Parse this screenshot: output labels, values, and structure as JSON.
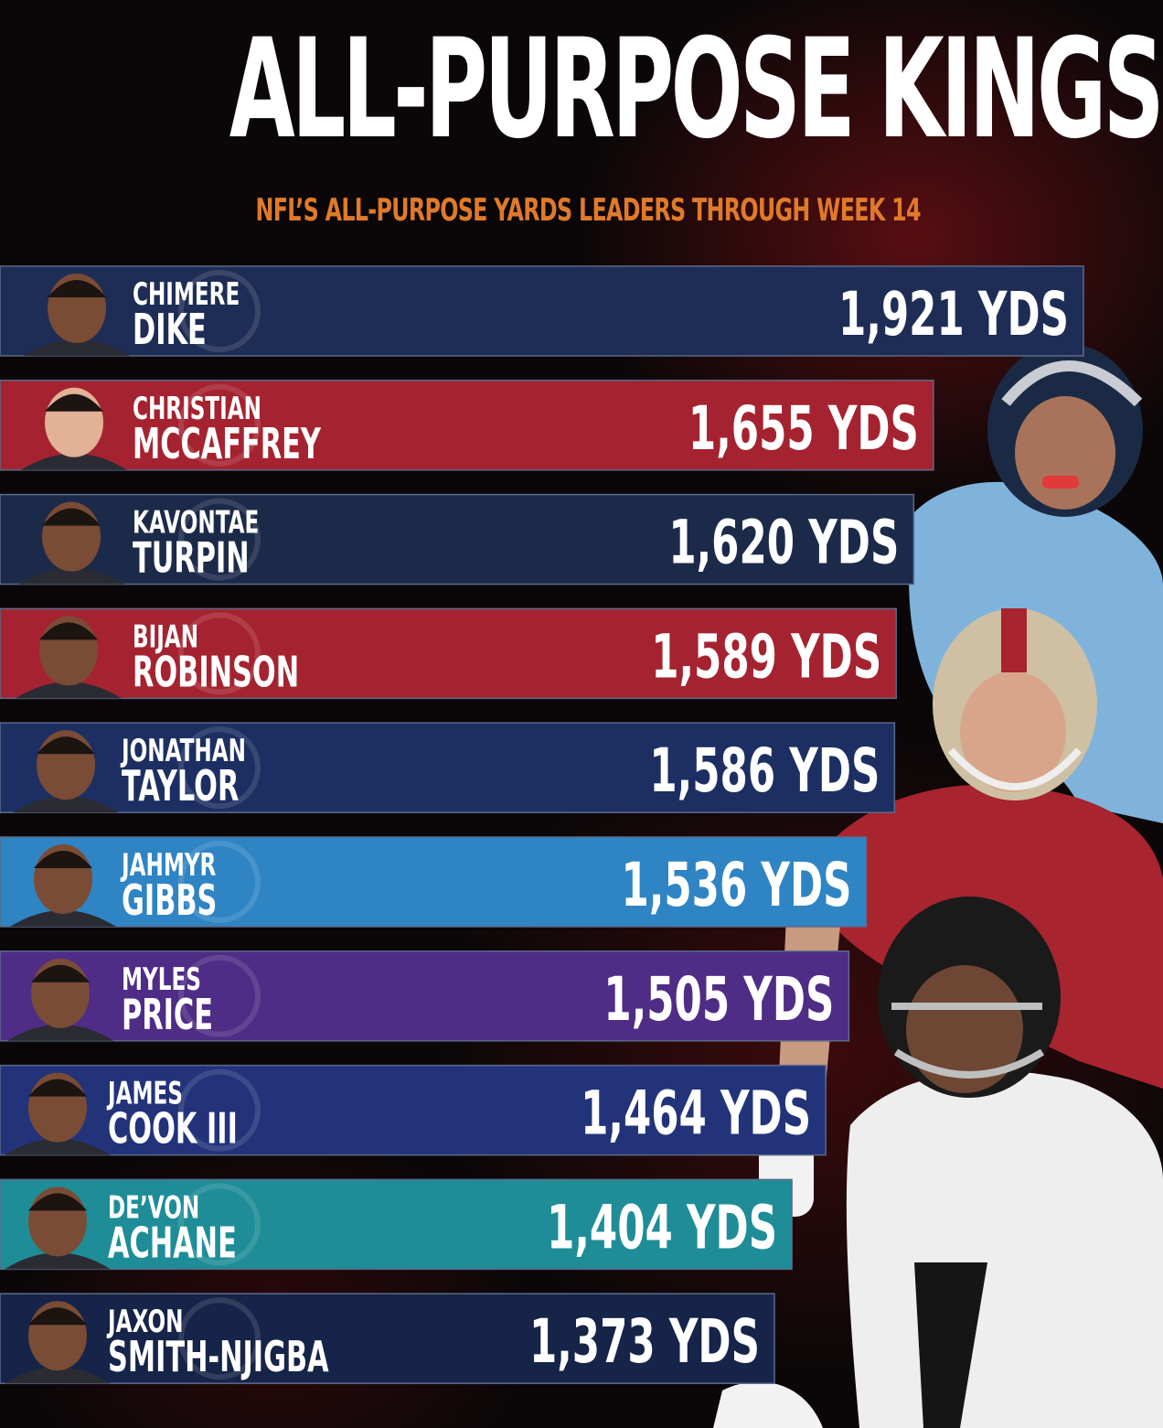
{
  "header": {
    "title": "ALL-PURPOSE KINGS",
    "subtitle": "NFL’S ALL-PURPOSE YARDS LEADERS THROUGH WEEK 14"
  },
  "chart_data": {
    "type": "bar",
    "orientation": "horizontal",
    "unit": "YDS",
    "categories": [
      [
        "CHIMERE",
        "DIKE"
      ],
      [
        "CHRISTIAN",
        "MCCAFFREY"
      ],
      [
        "KAVONTAE",
        "TURPIN"
      ],
      [
        "BIJAN",
        "ROBINSON"
      ],
      [
        "JONATHAN",
        "TAYLOR"
      ],
      [
        "JAHMYR",
        "GIBBS"
      ],
      [
        "MYLES",
        "PRICE"
      ],
      [
        "JAMES",
        "COOK III"
      ],
      [
        "DE’VON",
        "ACHANE"
      ],
      [
        "JAXON",
        "SMITH-NJIGBA"
      ]
    ],
    "values": [
      1921,
      1655,
      1620,
      1589,
      1586,
      1536,
      1505,
      1464,
      1404,
      1373
    ],
    "value_labels": [
      "1,921 YDS",
      "1,655 YDS",
      "1,620 YDS",
      "1,589 YDS",
      "1,586 YDS",
      "1,536 YDS",
      "1,505 YDS",
      "1,464 YDS",
      "1,404 YDS",
      "1,373 YDS"
    ],
    "bar_colors": [
      "#1e2d55",
      "#a52330",
      "#1c2a4a",
      "#a52330",
      "#1d2f62",
      "#2f84c4",
      "#4f2c86",
      "#22337a",
      "#1e8d97",
      "#152448"
    ],
    "xlim": [
      0,
      1921
    ],
    "grid": false,
    "legend": "none"
  }
}
